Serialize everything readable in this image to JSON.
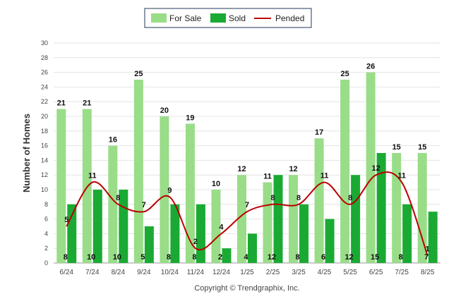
{
  "chart_data": {
    "type": "bar",
    "ylabel": "Number of Homes",
    "ylim": [
      0,
      30
    ],
    "yticks": [
      0,
      2,
      4,
      6,
      8,
      10,
      12,
      14,
      16,
      18,
      20,
      22,
      24,
      26,
      28,
      30
    ],
    "categories": [
      "6/24",
      "7/24",
      "8/24",
      "9/24",
      "10/24",
      "11/24",
      "12/24",
      "1/25",
      "2/25",
      "3/25",
      "4/25",
      "5/25",
      "6/25",
      "7/25",
      "8/25"
    ],
    "grid": true,
    "legend_position": "top-center",
    "series": [
      {
        "name": "For Sale",
        "kind": "bar",
        "color": "#99dd88",
        "values": [
          21,
          21,
          16,
          25,
          20,
          19,
          10,
          12,
          11,
          12,
          17,
          25,
          26,
          15,
          15
        ]
      },
      {
        "name": "Sold",
        "kind": "bar",
        "color": "#1aaa33",
        "values": [
          8,
          10,
          10,
          5,
          8,
          8,
          2,
          4,
          12,
          8,
          6,
          12,
          15,
          8,
          7
        ]
      },
      {
        "name": "Pended",
        "kind": "line",
        "color": "#bb0000",
        "values": [
          5,
          11,
          8,
          7,
          9,
          2,
          4,
          7,
          8,
          8,
          11,
          8,
          12,
          11,
          1
        ]
      }
    ]
  },
  "footer": {
    "copyright": "Copyright © Trendgraphix, Inc."
  }
}
